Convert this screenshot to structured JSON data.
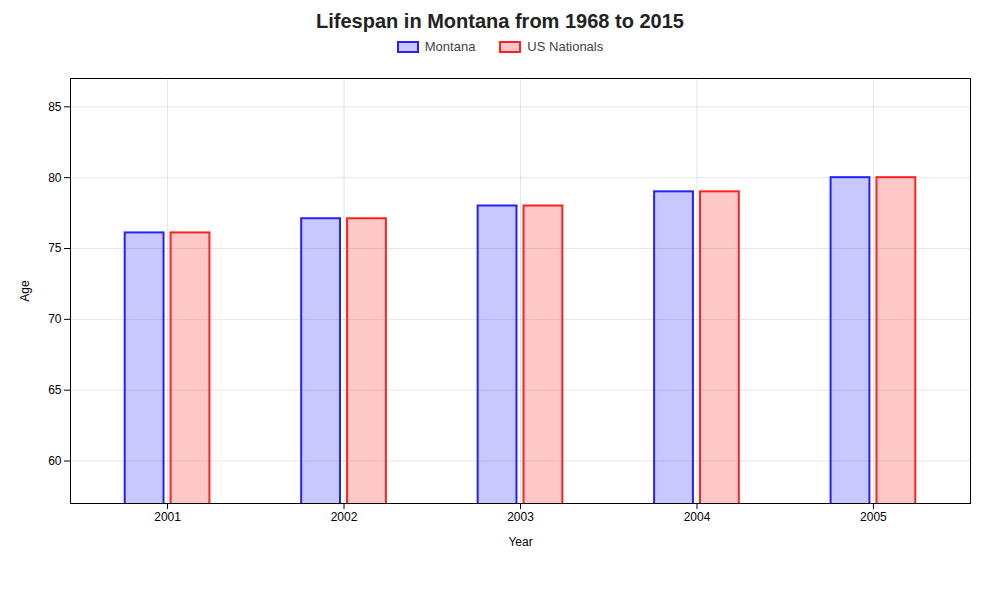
{
  "chart_data": {
    "type": "bar",
    "title": "Lifespan in Montana from 1968 to 2015",
    "xlabel": "Year",
    "ylabel": "Age",
    "categories": [
      "2001",
      "2002",
      "2003",
      "2004",
      "2005"
    ],
    "series": [
      {
        "name": "Montana",
        "color": "#2222ff",
        "values": [
          76.1,
          77.1,
          78.0,
          79.0,
          80.0
        ]
      },
      {
        "name": "US Nationals",
        "color": "#ff2222",
        "values": [
          76.1,
          77.1,
          78.0,
          79.0,
          80.0
        ]
      }
    ],
    "ylim": [
      57,
      87
    ],
    "yticks": [
      60,
      65,
      70,
      75,
      80,
      85
    ],
    "grid": true,
    "legend": "top"
  }
}
